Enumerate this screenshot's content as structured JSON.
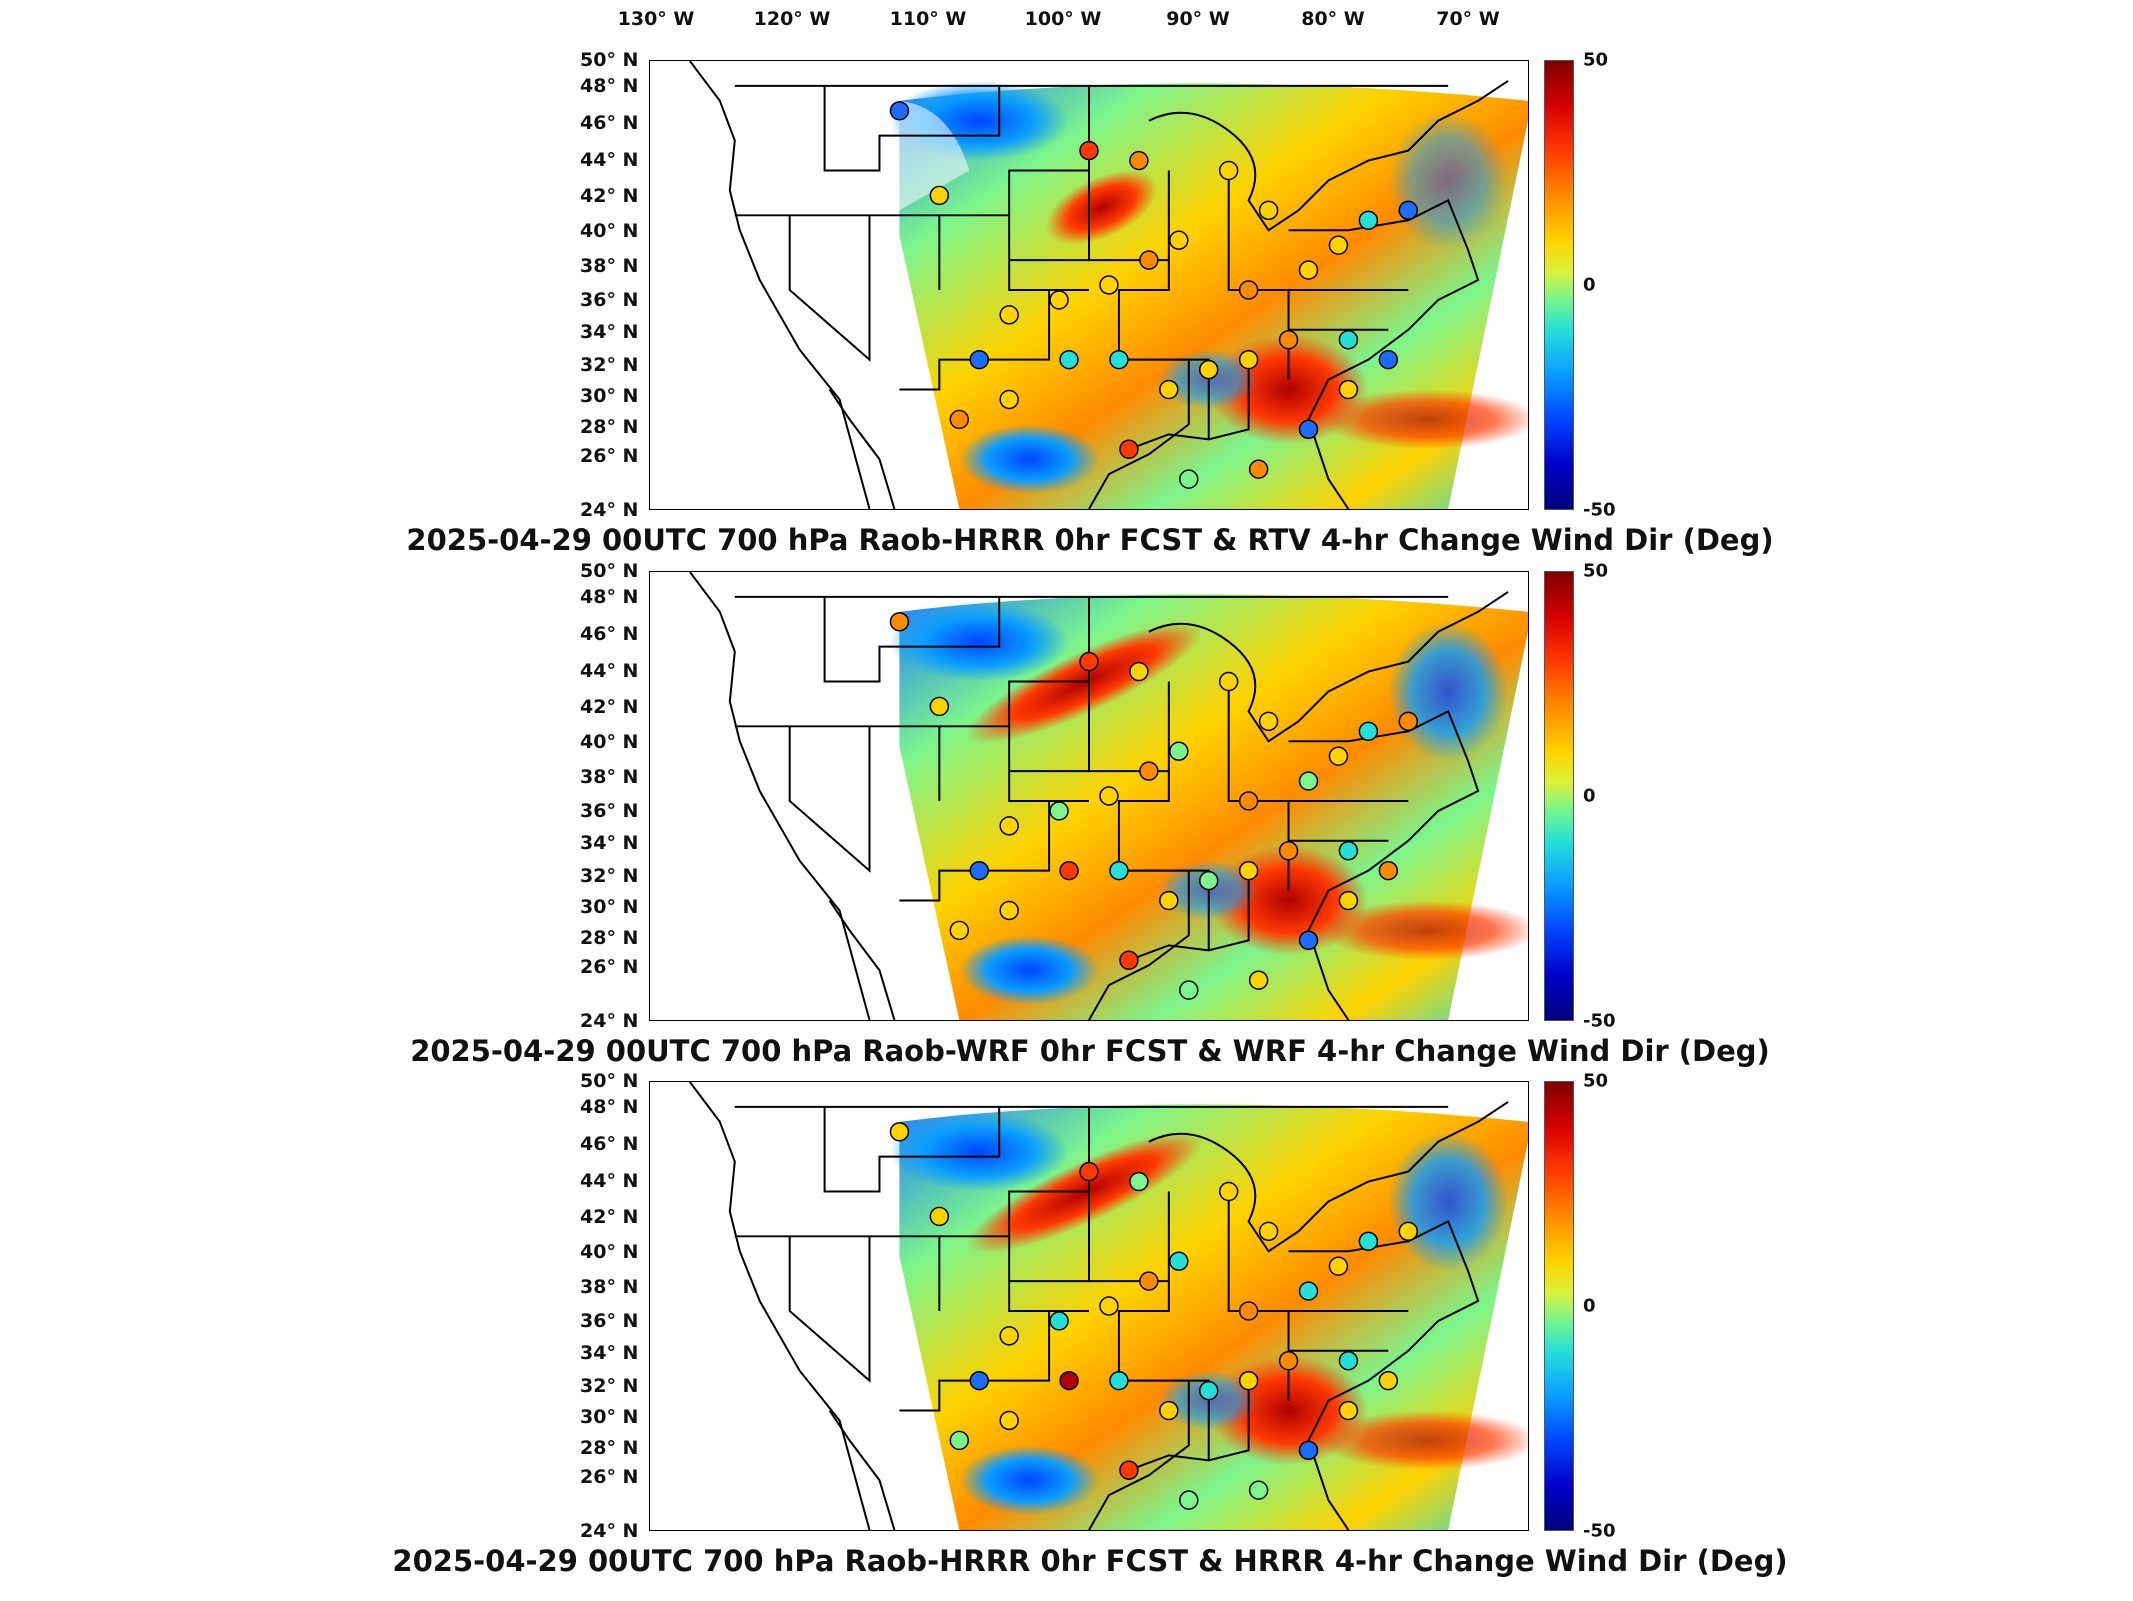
{
  "lon_labels": [
    "130° W",
    "120° W",
    "110° W",
    "100° W",
    "90° W",
    "80° W",
    "70° W"
  ],
  "lat_labels": [
    "50° N",
    "48° N",
    "46° N",
    "44° N",
    "42° N",
    "40° N",
    "38° N",
    "36° N",
    "34° N",
    "32° N",
    "30° N",
    "28° N",
    "26° N",
    "24° N"
  ],
  "colorbar": {
    "max_label": "50",
    "mid_label": "0",
    "min_label": "-50",
    "colors": [
      "#7f0000",
      "#ff3a00",
      "#ffd200",
      "#7cf58c",
      "#0a9cff",
      "#00007a"
    ]
  },
  "panels": [
    {
      "title": "2025-04-29 00UTC 700 hPa Raob-HRRR 0hr FCST & RTV 4-hr Change Wind Dir (Deg)"
    },
    {
      "title": "2025-04-29 00UTC 700 hPa Raob-WRF 0hr FCST & WRF 4-hr Change Wind Dir (Deg)"
    },
    {
      "title": "2025-04-29 00UTC 700 hPa Raob-HRRR 0hr FCST & HRRR 4-hr Change Wind Dir (Deg)"
    }
  ]
}
